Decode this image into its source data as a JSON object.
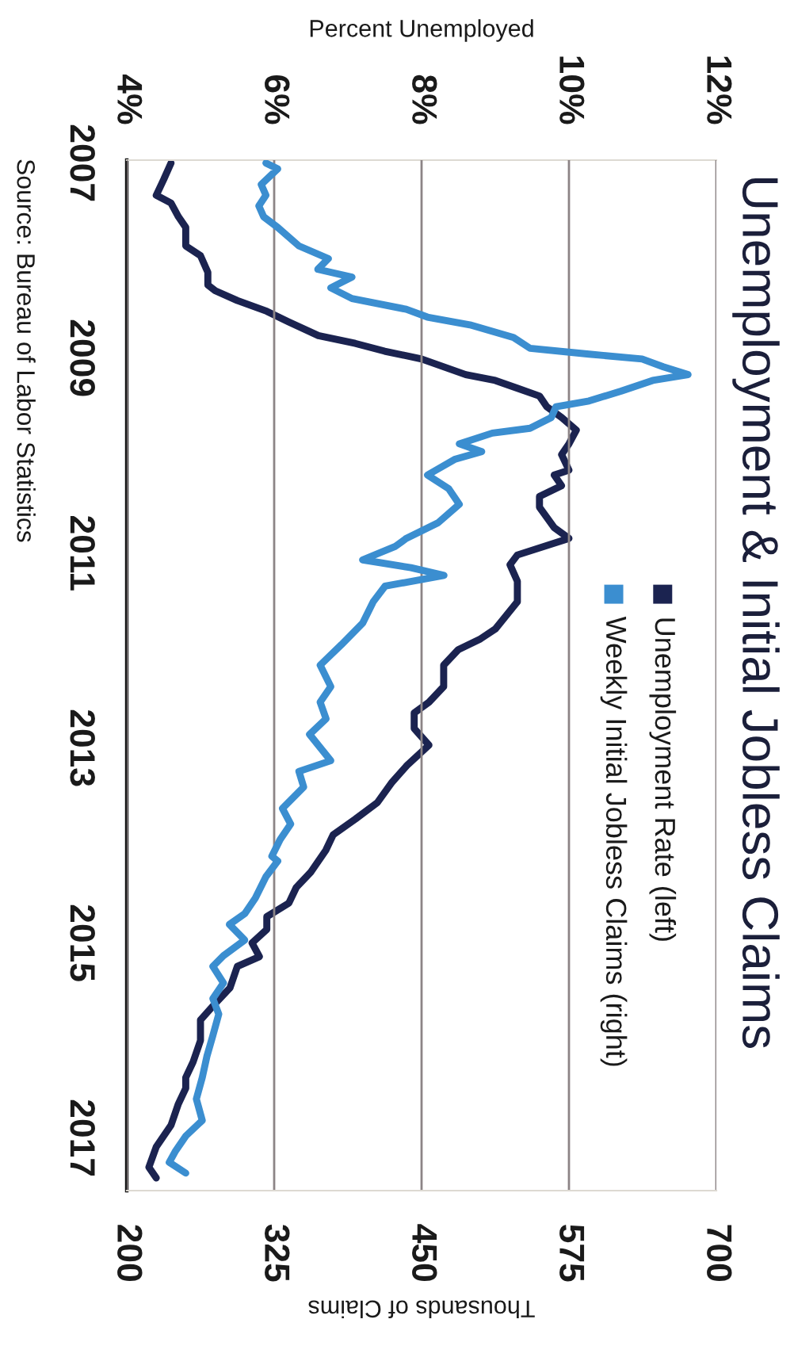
{
  "chart_data": {
    "type": "line",
    "title": "Unemployment & Initial Jobless Claims",
    "x2label": "Percent Unemployed",
    "xlabel": "Thousands of Claims",
    "annotations": [
      "Source: Bureau of Labor Statistics"
    ],
    "ylim": [
      2017.54,
      2006.97
    ],
    "yticks": [
      2007,
      2009,
      2011,
      2013,
      2015,
      2017
    ],
    "x2lim": [
      4,
      12
    ],
    "x2ticks": [
      {
        "value": 4,
        "label": "4%"
      },
      {
        "value": 6,
        "label": "6%"
      },
      {
        "value": 8,
        "label": "8%"
      },
      {
        "value": 10,
        "label": "10%"
      },
      {
        "value": 12,
        "label": "12%"
      }
    ],
    "xlim": [
      200,
      700
    ],
    "xticks": [
      200,
      325,
      450,
      575,
      700
    ],
    "grid": "x",
    "legend": "right",
    "series": [
      {
        "name": "Unemployment Rate (left)",
        "color": "#1b2350",
        "axis": "x2",
        "x": [
          4.6,
          4.5,
          4.4,
          4.6,
          4.7,
          4.8,
          4.8,
          5.0,
          5.1,
          5.1,
          5.2,
          5.5,
          5.9,
          6.2,
          6.6,
          7.1,
          7.5,
          8.0,
          8.6,
          9.0,
          9.3,
          9.6,
          9.7,
          9.9,
          10.1,
          10.0,
          9.9,
          10.0,
          9.8,
          9.9,
          9.6,
          9.6,
          9.8,
          10.0,
          9.3,
          9.2,
          9.3,
          9.3,
          9.0,
          8.8,
          8.5,
          8.3,
          8.3,
          8.1,
          7.9,
          7.9,
          8.1,
          7.8,
          7.6,
          7.4,
          7.1,
          6.8,
          6.7,
          6.5,
          6.3,
          6.2,
          5.9,
          5.9,
          5.7,
          5.8,
          5.5,
          5.4,
          5.2,
          5.0,
          5.0,
          4.9,
          4.8,
          4.8,
          4.7,
          4.6,
          4.4,
          4.3,
          4.4
        ],
        "values": [
          2007.0,
          2007.17,
          2007.33,
          2007.41,
          2007.55,
          2007.66,
          2007.85,
          2007.95,
          2008.12,
          2008.25,
          2008.31,
          2008.41,
          2008.52,
          2008.63,
          2008.77,
          2008.85,
          2008.93,
          2009.01,
          2009.17,
          2009.23,
          2009.31,
          2009.39,
          2009.5,
          2009.61,
          2009.74,
          2009.88,
          2009.99,
          2010.15,
          2010.2,
          2010.31,
          2010.42,
          2010.53,
          2010.74,
          2010.85,
          2011.02,
          2011.12,
          2011.29,
          2011.5,
          2011.78,
          2011.88,
          2011.99,
          2012.15,
          2012.37,
          2012.53,
          2012.64,
          2012.8,
          2012.97,
          2013.18,
          2013.35,
          2013.56,
          2013.73,
          2013.89,
          2014.05,
          2014.27,
          2014.43,
          2014.59,
          2014.73,
          2014.86,
          2015.0,
          2015.14,
          2015.24,
          2015.46,
          2015.62,
          2015.79,
          2016.0,
          2016.22,
          2016.38,
          2016.49,
          2016.65,
          2016.87,
          2017.09,
          2017.3,
          2017.41
        ]
      },
      {
        "name": "Weekly Initial Jobless Claims (right)",
        "color": "#3b8ed0",
        "x": [
          318,
          328,
          314,
          318,
          312,
          316,
          328,
          346,
          371,
          362,
          391,
          373,
          391,
          437,
          455,
          491,
          528,
          542,
          592,
          637,
          655,
          676,
          646,
          619,
          592,
          564,
          560,
          542,
          510,
          482,
          501,
          478,
          455,
          473,
          482,
          464,
          437,
          428,
          400,
          441,
          469,
          419,
          409,
          400,
          382,
          364,
          373,
          364,
          369,
          355,
          373,
          346,
          350,
          332,
          339,
          330,
          323,
          328,
          318,
          309,
          300,
          287,
          300,
          282,
          273,
          282,
          273,
          278,
          273,
          268,
          264,
          259,
          264,
          250,
          241,
          236,
          250
        ],
        "values": [
          2007.0,
          2007.06,
          2007.22,
          2007.33,
          2007.44,
          2007.55,
          2007.66,
          2007.85,
          2007.98,
          2008.09,
          2008.17,
          2008.28,
          2008.39,
          2008.5,
          2008.58,
          2008.66,
          2008.79,
          2008.9,
          2008.96,
          2009.01,
          2009.09,
          2009.17,
          2009.23,
          2009.34,
          2009.44,
          2009.5,
          2009.61,
          2009.72,
          2009.77,
          2009.88,
          2009.96,
          2010.04,
          2010.2,
          2010.34,
          2010.5,
          2010.69,
          2010.85,
          2010.93,
          2011.07,
          2011.15,
          2011.23,
          2011.34,
          2011.5,
          2011.72,
          2011.94,
          2012.15,
          2012.37,
          2012.53,
          2012.7,
          2012.86,
          2013.13,
          2013.24,
          2013.4,
          2013.62,
          2013.78,
          2013.94,
          2014.11,
          2014.16,
          2014.32,
          2014.54,
          2014.7,
          2014.81,
          2014.97,
          2015.13,
          2015.24,
          2015.41,
          2015.57,
          2015.73,
          2015.95,
          2016.16,
          2016.38,
          2016.6,
          2016.82,
          2016.98,
          2017.14,
          2017.25,
          2017.36
        ]
      }
    ]
  }
}
